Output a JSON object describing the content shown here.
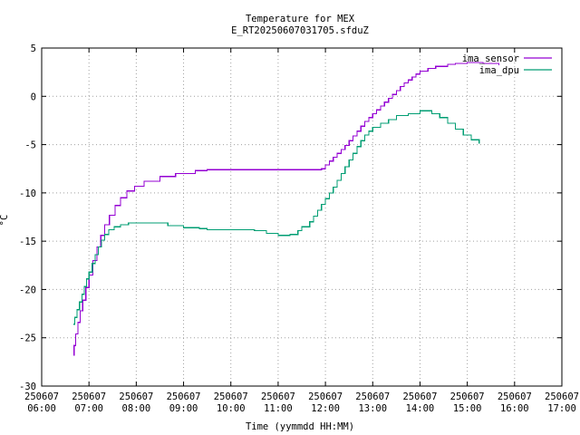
{
  "chart_data": {
    "type": "line",
    "title": "Temperature for MEX",
    "subtitle": "E_RT20250607031705.sfduZ",
    "xlabel": "Time (yymmdd HH:MM)",
    "ylabel": "°C",
    "xlim": [
      "06:00",
      "17:00"
    ],
    "ylim": [
      -30,
      5
    ],
    "grid": true,
    "legend_position": "top-right",
    "x_ticks": [
      {
        "date": "250607",
        "time": "06:00"
      },
      {
        "date": "250607",
        "time": "07:00"
      },
      {
        "date": "250607",
        "time": "08:00"
      },
      {
        "date": "250607",
        "time": "09:00"
      },
      {
        "date": "250607",
        "time": "10:00"
      },
      {
        "date": "250607",
        "time": "11:00"
      },
      {
        "date": "250607",
        "time": "12:00"
      },
      {
        "date": "250607",
        "time": "13:00"
      },
      {
        "date": "250607",
        "time": "14:00"
      },
      {
        "date": "250607",
        "time": "15:00"
      },
      {
        "date": "250607",
        "time": "16:00"
      },
      {
        "date": "250607",
        "time": "17:00"
      }
    ],
    "y_ticks": [
      5,
      0,
      -5,
      -10,
      -15,
      -20,
      -25,
      -30
    ],
    "series": [
      {
        "name": "ima_sensor",
        "color": "#9400d3",
        "points": [
          [
            "06:40",
            -26.8
          ],
          [
            "06:41",
            -25.8
          ],
          [
            "06:43",
            -24.6
          ],
          [
            "06:46",
            -23.4
          ],
          [
            "06:49",
            -22.2
          ],
          [
            "06:52",
            -21.1
          ],
          [
            "06:56",
            -19.8
          ],
          [
            "07:00",
            -18.5
          ],
          [
            "07:05",
            -17.0
          ],
          [
            "07:10",
            -15.6
          ],
          [
            "07:15",
            -14.4
          ],
          [
            "07:20",
            -13.3
          ],
          [
            "07:26",
            -12.3
          ],
          [
            "07:33",
            -11.3
          ],
          [
            "07:40",
            -10.5
          ],
          [
            "07:48",
            -9.8
          ],
          [
            "07:58",
            -9.3
          ],
          [
            "08:10",
            -8.8
          ],
          [
            "08:30",
            -8.3
          ],
          [
            "08:50",
            -8.0
          ],
          [
            "09:15",
            -7.7
          ],
          [
            "09:30",
            -7.6
          ],
          [
            "10:30",
            -7.6
          ],
          [
            "11:40",
            -7.6
          ],
          [
            "11:55",
            -7.5
          ],
          [
            "12:00",
            -7.1
          ],
          [
            "12:05",
            -6.7
          ],
          [
            "12:10",
            -6.3
          ],
          [
            "12:15",
            -5.9
          ],
          [
            "12:20",
            -5.5
          ],
          [
            "12:25",
            -5.1
          ],
          [
            "12:30",
            -4.6
          ],
          [
            "12:35",
            -4.1
          ],
          [
            "12:40",
            -3.6
          ],
          [
            "12:45",
            -3.1
          ],
          [
            "12:50",
            -2.6
          ],
          [
            "12:55",
            -2.2
          ],
          [
            "13:00",
            -1.8
          ],
          [
            "13:05",
            -1.4
          ],
          [
            "13:10",
            -1.0
          ],
          [
            "13:15",
            -0.6
          ],
          [
            "13:20",
            -0.2
          ],
          [
            "13:25",
            0.2
          ],
          [
            "13:30",
            0.6
          ],
          [
            "13:35",
            1.0
          ],
          [
            "13:40",
            1.4
          ],
          [
            "13:45",
            1.7
          ],
          [
            "13:50",
            2.0
          ],
          [
            "13:55",
            2.3
          ],
          [
            "14:00",
            2.6
          ],
          [
            "14:10",
            2.9
          ],
          [
            "14:20",
            3.1
          ],
          [
            "14:35",
            3.3
          ],
          [
            "14:45",
            3.4
          ],
          [
            "15:00",
            3.5
          ],
          [
            "15:20",
            3.4
          ],
          [
            "15:40",
            3.2
          ]
        ]
      },
      {
        "name": "ima_dpu",
        "color": "#009e73",
        "points": [
          [
            "06:40",
            -23.6
          ],
          [
            "06:42",
            -22.9
          ],
          [
            "06:45",
            -22.1
          ],
          [
            "06:48",
            -21.3
          ],
          [
            "06:51",
            -20.5
          ],
          [
            "06:54",
            -19.7
          ],
          [
            "06:57",
            -18.9
          ],
          [
            "07:00",
            -18.2
          ],
          [
            "07:04",
            -17.3
          ],
          [
            "07:08",
            -16.4
          ],
          [
            "07:12",
            -15.6
          ],
          [
            "07:16",
            -14.9
          ],
          [
            "07:20",
            -14.3
          ],
          [
            "07:25",
            -13.8
          ],
          [
            "07:32",
            -13.5
          ],
          [
            "07:40",
            -13.3
          ],
          [
            "07:50",
            -13.1
          ],
          [
            "08:30",
            -13.1
          ],
          [
            "08:40",
            -13.4
          ],
          [
            "09:00",
            -13.6
          ],
          [
            "09:20",
            -13.7
          ],
          [
            "09:30",
            -13.8
          ],
          [
            "10:30",
            -13.9
          ],
          [
            "10:45",
            -14.2
          ],
          [
            "11:00",
            -14.4
          ],
          [
            "11:15",
            -14.3
          ],
          [
            "11:25",
            -13.9
          ],
          [
            "11:30",
            -13.5
          ],
          [
            "11:40",
            -13.0
          ],
          [
            "11:45",
            -12.4
          ],
          [
            "11:50",
            -11.8
          ],
          [
            "11:55",
            -11.2
          ],
          [
            "12:00",
            -10.6
          ],
          [
            "12:05",
            -10.0
          ],
          [
            "12:10",
            -9.4
          ],
          [
            "12:15",
            -8.7
          ],
          [
            "12:20",
            -8.0
          ],
          [
            "12:25",
            -7.3
          ],
          [
            "12:30",
            -6.6
          ],
          [
            "12:35",
            -5.9
          ],
          [
            "12:40",
            -5.2
          ],
          [
            "12:45",
            -4.6
          ],
          [
            "12:50",
            -4.0
          ],
          [
            "12:55",
            -3.6
          ],
          [
            "13:00",
            -3.2
          ],
          [
            "13:10",
            -2.8
          ],
          [
            "13:20",
            -2.4
          ],
          [
            "13:30",
            -2.0
          ],
          [
            "13:45",
            -1.8
          ],
          [
            "14:00",
            -1.5
          ],
          [
            "14:15",
            -1.8
          ],
          [
            "14:25",
            -2.2
          ],
          [
            "14:35",
            -2.8
          ],
          [
            "14:45",
            -3.4
          ],
          [
            "14:55",
            -4.0
          ],
          [
            "15:05",
            -4.5
          ],
          [
            "15:15",
            -4.9
          ]
        ]
      }
    ]
  }
}
